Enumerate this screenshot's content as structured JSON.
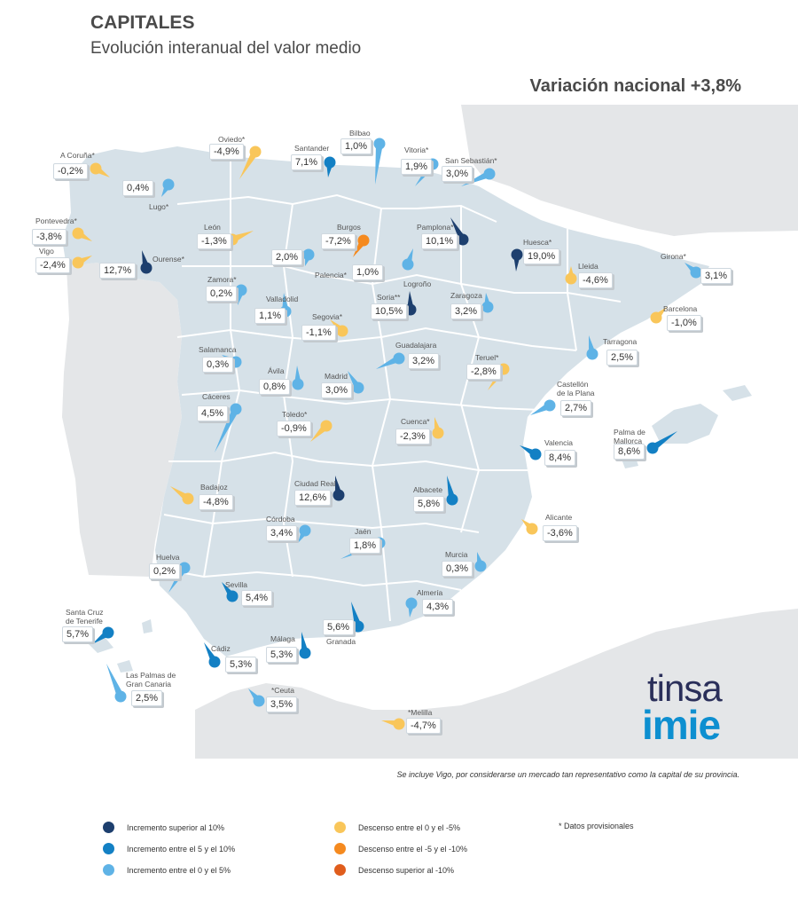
{
  "header": {
    "title": "CAPITALES",
    "subtitle": "Evolución interanual del valor medio",
    "national": "Variación nacional +3,8%"
  },
  "colors": {
    "inc_gt10": "#1d3f6e",
    "inc_5_10": "#1380c4",
    "inc_0_5": "#5fb3e6",
    "dec_0_5": "#f9c65a",
    "dec_5_10": "#f58a1f",
    "dec_gt10": "#e05d1c",
    "land": "#d6e1e8",
    "foreign": "#e4e6e8",
    "sea": "#ffffff"
  },
  "cities": [
    {
      "name": "A Coruña*",
      "value": "-0,2%",
      "cat": "dec_0_5"
    },
    {
      "name": "Lugo*",
      "value": "0,4%",
      "cat": "inc_0_5"
    },
    {
      "name": "Oviedo*",
      "value": "-4,9%",
      "cat": "dec_0_5"
    },
    {
      "name": "Santander",
      "value": "7,1%",
      "cat": "inc_5_10"
    },
    {
      "name": "Bilbao",
      "value": "1,0%",
      "cat": "inc_0_5"
    },
    {
      "name": "Vitoria*",
      "value": "1,9%",
      "cat": "inc_0_5"
    },
    {
      "name": "San Sebastián*",
      "value": "3,0%",
      "cat": "inc_0_5"
    },
    {
      "name": "Pontevedra*",
      "value": "-3,8%",
      "cat": "dec_0_5"
    },
    {
      "name": "Vigo",
      "value": "-2,4%",
      "cat": "dec_0_5"
    },
    {
      "name": "Ourense*",
      "value": "12,7%",
      "cat": "inc_gt10"
    },
    {
      "name": "León",
      "value": "-1,3%",
      "cat": "dec_0_5"
    },
    {
      "name": "Burgos",
      "value": "-7,2%",
      "cat": "dec_5_10"
    },
    {
      "name": "Pamplona*",
      "value": "10,1%",
      "cat": "inc_gt10"
    },
    {
      "name": "Huesca*",
      "value": "19,0%",
      "cat": "inc_gt10"
    },
    {
      "name": "Palencia*",
      "value": "2,0%",
      "cat": "inc_0_5"
    },
    {
      "name": "Logroño",
      "value": "1,0%",
      "cat": "inc_0_5"
    },
    {
      "name": "Lleida",
      "value": "-4,6%",
      "cat": "dec_0_5"
    },
    {
      "name": "Girona*",
      "value": "3,1%",
      "cat": "inc_0_5"
    },
    {
      "name": "Zamora*",
      "value": "0,2%",
      "cat": "inc_0_5"
    },
    {
      "name": "Valladolid",
      "value": "1,1%",
      "cat": "inc_0_5"
    },
    {
      "name": "Soria**",
      "value": "10,5%",
      "cat": "inc_gt10"
    },
    {
      "name": "Zaragoza",
      "value": "3,2%",
      "cat": "inc_0_5"
    },
    {
      "name": "Barcelona",
      "value": "-1,0%",
      "cat": "dec_0_5"
    },
    {
      "name": "Segovia*",
      "value": "-1,1%",
      "cat": "dec_0_5"
    },
    {
      "name": "Salamanca",
      "value": "0,3%",
      "cat": "inc_0_5"
    },
    {
      "name": "Guadalajara",
      "value": "3,2%",
      "cat": "inc_0_5"
    },
    {
      "name": "Tarragona",
      "value": "2,5%",
      "cat": "inc_0_5"
    },
    {
      "name": "Ávila",
      "value": "0,8%",
      "cat": "inc_0_5"
    },
    {
      "name": "Madrid",
      "value": "3,0%",
      "cat": "inc_0_5"
    },
    {
      "name": "Teruel*",
      "value": "-2,8%",
      "cat": "dec_0_5"
    },
    {
      "name": "Cáceres",
      "value": "4,5%",
      "cat": "inc_0_5"
    },
    {
      "name": "Castellón\nde la Plana",
      "value": "2,7%",
      "cat": "inc_0_5"
    },
    {
      "name": "Toledo*",
      "value": "-0,9%",
      "cat": "dec_0_5"
    },
    {
      "name": "Cuenca*",
      "value": "-2,3%",
      "cat": "dec_0_5"
    },
    {
      "name": "Valencia",
      "value": "8,4%",
      "cat": "inc_5_10"
    },
    {
      "name": "Palma de\nMallorca",
      "value": "8,6%",
      "cat": "inc_5_10"
    },
    {
      "name": "Badajoz",
      "value": "-4,8%",
      "cat": "dec_0_5"
    },
    {
      "name": "Ciudad Real",
      "value": "12,6%",
      "cat": "inc_gt10"
    },
    {
      "name": "Albacete",
      "value": "5,8%",
      "cat": "inc_5_10"
    },
    {
      "name": "Alicante",
      "value": "-3,6%",
      "cat": "dec_0_5"
    },
    {
      "name": "Córdoba",
      "value": "3,4%",
      "cat": "inc_0_5"
    },
    {
      "name": "Jaén",
      "value": "1,8%",
      "cat": "inc_0_5"
    },
    {
      "name": "Huelva",
      "value": "0,2%",
      "cat": "inc_0_5"
    },
    {
      "name": "Murcia",
      "value": "0,3%",
      "cat": "inc_0_5"
    },
    {
      "name": "Sevilla",
      "value": "5,4%",
      "cat": "inc_5_10"
    },
    {
      "name": "Almería",
      "value": "4,3%",
      "cat": "inc_0_5"
    },
    {
      "name": "Santa Cruz\nde Tenerife",
      "value": "5,7%",
      "cat": "inc_5_10"
    },
    {
      "name": "Granada",
      "value": "5,6%",
      "cat": "inc_5_10"
    },
    {
      "name": "Málaga",
      "value": "5,3%",
      "cat": "inc_5_10"
    },
    {
      "name": "Cádiz",
      "value": "5,3%",
      "cat": "inc_5_10"
    },
    {
      "name": "Las Palmas de\nGran Canaria",
      "value": "2,5%",
      "cat": "inc_0_5"
    },
    {
      "name": "*Ceuta",
      "value": "3,5%",
      "cat": "inc_0_5"
    },
    {
      "name": "*Melilla",
      "value": "-4,7%",
      "cat": "dec_0_5"
    }
  ],
  "logo": {
    "top": "tinsa",
    "bottom": "imie"
  },
  "note": "Se incluye Vigo, por considerarse un mercado tan representativo como la capital de su provincia.",
  "legend": [
    {
      "label": "Incremento superior al 10%",
      "cat": "inc_gt10"
    },
    {
      "label": "Incremento entre el 5 y el 10%",
      "cat": "inc_5_10"
    },
    {
      "label": "Incremento entre el 0 y el 5%",
      "cat": "inc_0_5"
    },
    {
      "label": "Descenso entre el 0 y el -5%",
      "cat": "dec_0_5"
    },
    {
      "label": "Descenso entre el -5 y el -10%",
      "cat": "dec_5_10"
    },
    {
      "label": "Descenso superior al -10%",
      "cat": "dec_gt10"
    }
  ],
  "provisional_note": "* Datos provisionales"
}
